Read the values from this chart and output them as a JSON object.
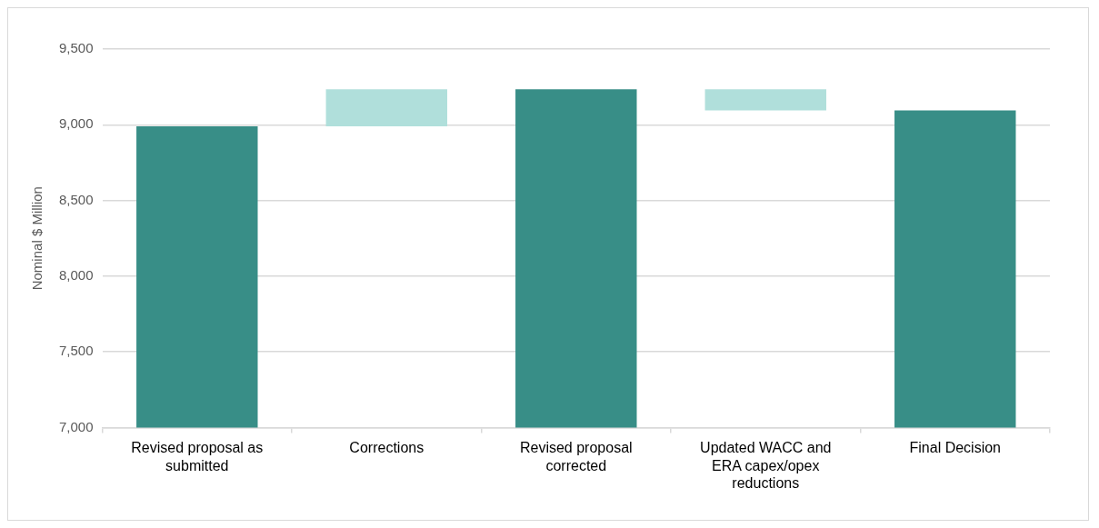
{
  "chart_data": {
    "type": "bar",
    "ylabel": "Nominal $ Million",
    "categories": [
      "Revised proposal as submitted",
      "Corrections",
      "Revised proposal corrected",
      "Updated WACC and ERA capex/opex reductions",
      "Final Decision"
    ],
    "values": [
      8990,
      245,
      9235,
      -140,
      9095
    ],
    "base": [
      null,
      8990,
      null,
      9235,
      null
    ],
    "colors": [
      "#388e87",
      "#b0dfdb",
      "#388e87",
      "#b0dfdb",
      "#388e87"
    ],
    "ylim": [
      7000,
      9500
    ],
    "yticks": [
      {
        "value": 7000,
        "label": "7,000"
      },
      {
        "value": 7500,
        "label": "7,500"
      },
      {
        "value": 8000,
        "label": "8,000"
      },
      {
        "value": 8500,
        "label": "8,500"
      },
      {
        "value": 9000,
        "label": "9,000"
      },
      {
        "value": 9500,
        "label": "9,500"
      }
    ],
    "grid": "y",
    "legend": false
  }
}
